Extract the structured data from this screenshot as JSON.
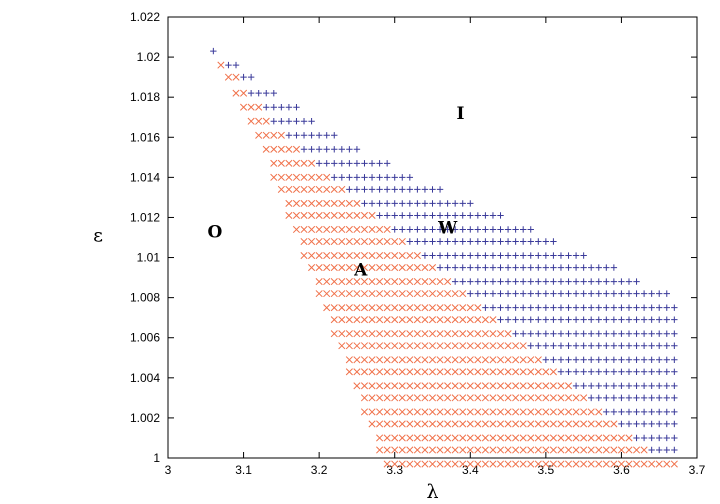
{
  "chart_data": {
    "type": "scatter",
    "xlabel": "λ",
    "ylabel": "ε",
    "xlim": [
      3.0,
      3.7
    ],
    "ylim": [
      1.0,
      1.022
    ],
    "xticks": [
      "3",
      "3.1",
      "3.2",
      "3.3",
      "3.4",
      "3.5",
      "3.6",
      "3.7"
    ],
    "yticks": [
      "1",
      "1.002",
      "1.004",
      "1.006",
      "1.008",
      "1.01",
      "1.012",
      "1.014",
      "1.016",
      "1.018",
      "1.02",
      "1.022"
    ],
    "grid": false,
    "legend": "none",
    "lambda_step": 0.01,
    "epsilon_step": 0.0013,
    "series": [
      {
        "marker": "x",
        "color": "#f0714a",
        "rows": [
          {
            "epsilon": 1.0196,
            "lambda_min": 3.07,
            "lambda_max": 3.07
          },
          {
            "epsilon": 1.019,
            "lambda_min": 3.08,
            "lambda_max": 3.09
          },
          {
            "epsilon": 1.0182,
            "lambda_min": 3.09,
            "lambda_max": 3.1
          },
          {
            "epsilon": 1.0175,
            "lambda_min": 3.1,
            "lambda_max": 3.12
          },
          {
            "epsilon": 1.0168,
            "lambda_min": 3.11,
            "lambda_max": 3.13
          },
          {
            "epsilon": 1.0161,
            "lambda_min": 3.12,
            "lambda_max": 3.15
          },
          {
            "epsilon": 1.0154,
            "lambda_min": 3.13,
            "lambda_max": 3.17
          },
          {
            "epsilon": 1.0147,
            "lambda_min": 3.14,
            "lambda_max": 3.19
          },
          {
            "epsilon": 1.014,
            "lambda_min": 3.14,
            "lambda_max": 3.21
          },
          {
            "epsilon": 1.0134,
            "lambda_min": 3.15,
            "lambda_max": 3.23
          },
          {
            "epsilon": 1.0127,
            "lambda_min": 3.16,
            "lambda_max": 3.25
          },
          {
            "epsilon": 1.0121,
            "lambda_min": 3.16,
            "lambda_max": 3.27
          },
          {
            "epsilon": 1.0114,
            "lambda_min": 3.17,
            "lambda_max": 3.29
          },
          {
            "epsilon": 1.0108,
            "lambda_min": 3.18,
            "lambda_max": 3.31
          },
          {
            "epsilon": 1.0101,
            "lambda_min": 3.18,
            "lambda_max": 3.33
          },
          {
            "epsilon": 1.0095,
            "lambda_min": 3.19,
            "lambda_max": 3.35
          },
          {
            "epsilon": 1.0088,
            "lambda_min": 3.2,
            "lambda_max": 3.37
          },
          {
            "epsilon": 1.0082,
            "lambda_min": 3.2,
            "lambda_max": 3.39
          },
          {
            "epsilon": 1.0075,
            "lambda_min": 3.21,
            "lambda_max": 3.41
          },
          {
            "epsilon": 1.0069,
            "lambda_min": 3.22,
            "lambda_max": 3.43
          },
          {
            "epsilon": 1.0062,
            "lambda_min": 3.22,
            "lambda_max": 3.45
          },
          {
            "epsilon": 1.0056,
            "lambda_min": 3.23,
            "lambda_max": 3.47
          },
          {
            "epsilon": 1.0049,
            "lambda_min": 3.24,
            "lambda_max": 3.49
          },
          {
            "epsilon": 1.0043,
            "lambda_min": 3.24,
            "lambda_max": 3.51
          },
          {
            "epsilon": 1.0036,
            "lambda_min": 3.25,
            "lambda_max": 3.53
          },
          {
            "epsilon": 1.003,
            "lambda_min": 3.26,
            "lambda_max": 3.55
          },
          {
            "epsilon": 1.0023,
            "lambda_min": 3.26,
            "lambda_max": 3.57
          },
          {
            "epsilon": 1.0017,
            "lambda_min": 3.27,
            "lambda_max": 3.59
          },
          {
            "epsilon": 1.001,
            "lambda_min": 3.28,
            "lambda_max": 3.61
          },
          {
            "epsilon": 1.0004,
            "lambda_min": 3.28,
            "lambda_max": 3.63
          },
          {
            "epsilon": 0.9997,
            "lambda_min": 3.29,
            "lambda_max": 3.67
          }
        ]
      },
      {
        "marker": "+",
        "color": "#3a3a9a",
        "rows": [
          {
            "epsilon": 1.0203,
            "lambda_min": 3.06,
            "lambda_max": 3.06
          },
          {
            "epsilon": 1.0196,
            "lambda_min": 3.08,
            "lambda_max": 3.09
          },
          {
            "epsilon": 1.019,
            "lambda_min": 3.1,
            "lambda_max": 3.11
          },
          {
            "epsilon": 1.0182,
            "lambda_min": 3.11,
            "lambda_max": 3.14
          },
          {
            "epsilon": 1.0175,
            "lambda_min": 3.13,
            "lambda_max": 3.17
          },
          {
            "epsilon": 1.0168,
            "lambda_min": 3.14,
            "lambda_max": 3.19
          },
          {
            "epsilon": 1.0161,
            "lambda_min": 3.16,
            "lambda_max": 3.22
          },
          {
            "epsilon": 1.0154,
            "lambda_min": 3.18,
            "lambda_max": 3.25
          },
          {
            "epsilon": 1.0147,
            "lambda_min": 3.2,
            "lambda_max": 3.29
          },
          {
            "epsilon": 1.014,
            "lambda_min": 3.22,
            "lambda_max": 3.32
          },
          {
            "epsilon": 1.0134,
            "lambda_min": 3.24,
            "lambda_max": 3.36
          },
          {
            "epsilon": 1.0127,
            "lambda_min": 3.26,
            "lambda_max": 3.4
          },
          {
            "epsilon": 1.0121,
            "lambda_min": 3.28,
            "lambda_max": 3.44
          },
          {
            "epsilon": 1.0114,
            "lambda_min": 3.3,
            "lambda_max": 3.48
          },
          {
            "epsilon": 1.0108,
            "lambda_min": 3.32,
            "lambda_max": 3.51
          },
          {
            "epsilon": 1.0101,
            "lambda_min": 3.34,
            "lambda_max": 3.55
          },
          {
            "epsilon": 1.0095,
            "lambda_min": 3.36,
            "lambda_max": 3.59
          },
          {
            "epsilon": 1.0088,
            "lambda_min": 3.38,
            "lambda_max": 3.62
          },
          {
            "epsilon": 1.0082,
            "lambda_min": 3.4,
            "lambda_max": 3.66
          },
          {
            "epsilon": 1.0075,
            "lambda_min": 3.42,
            "lambda_max": 3.67
          },
          {
            "epsilon": 1.0069,
            "lambda_min": 3.44,
            "lambda_max": 3.67
          },
          {
            "epsilon": 1.0062,
            "lambda_min": 3.46,
            "lambda_max": 3.67
          },
          {
            "epsilon": 1.0056,
            "lambda_min": 3.48,
            "lambda_max": 3.67
          },
          {
            "epsilon": 1.0049,
            "lambda_min": 3.5,
            "lambda_max": 3.67
          },
          {
            "epsilon": 1.0043,
            "lambda_min": 3.52,
            "lambda_max": 3.67
          },
          {
            "epsilon": 1.0036,
            "lambda_min": 3.54,
            "lambda_max": 3.67
          },
          {
            "epsilon": 1.003,
            "lambda_min": 3.56,
            "lambda_max": 3.67
          },
          {
            "epsilon": 1.0023,
            "lambda_min": 3.58,
            "lambda_max": 3.67
          },
          {
            "epsilon": 1.0017,
            "lambda_min": 3.6,
            "lambda_max": 3.67
          },
          {
            "epsilon": 1.001,
            "lambda_min": 3.62,
            "lambda_max": 3.67
          },
          {
            "epsilon": 1.0004,
            "lambda_min": 3.64,
            "lambda_max": 3.67
          }
        ]
      }
    ],
    "annotations": [
      {
        "text": "I",
        "x": 3.387,
        "y": 1.0172
      },
      {
        "text": "W",
        "x": 3.37,
        "y": 1.0115
      },
      {
        "text": "O",
        "x": 3.062,
        "y": 1.0113
      },
      {
        "text": "A",
        "x": 3.255,
        "y": 1.0094
      }
    ]
  }
}
